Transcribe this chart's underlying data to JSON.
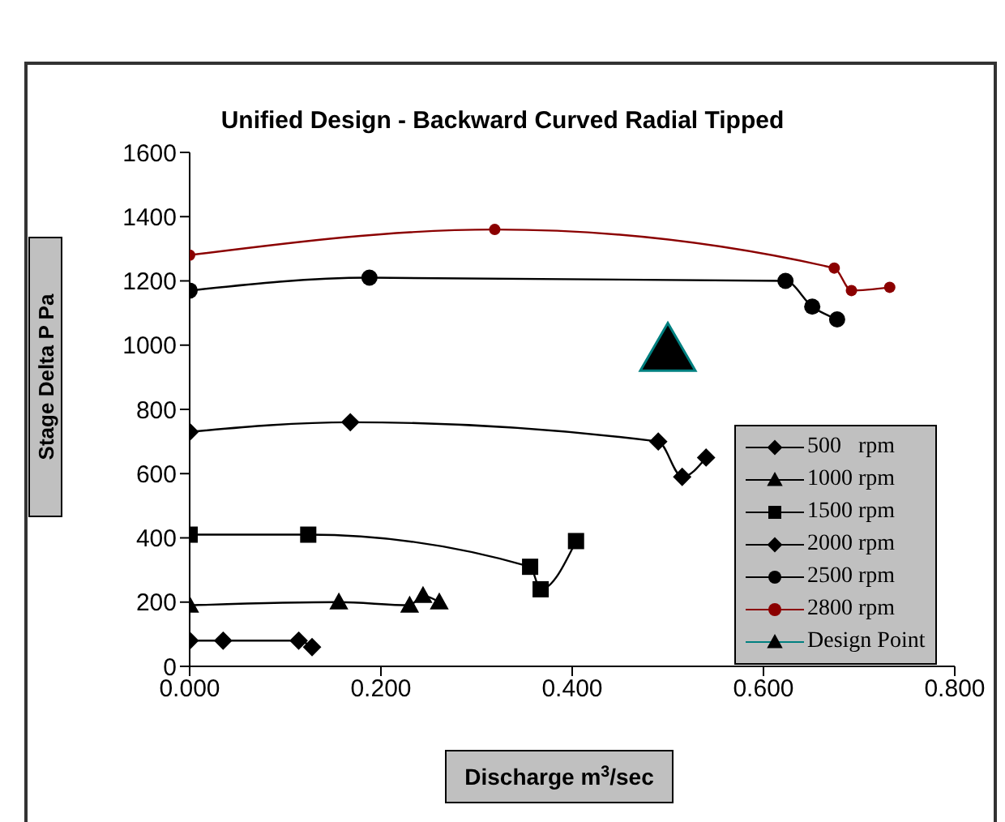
{
  "chart_data": {
    "type": "line",
    "title": "Unified Design - Backward Curved Radial Tipped",
    "xlabel": "Discharge m$^{3}$/sec",
    "ylabel": "Stage Delta P  Pa",
    "xlim": [
      0,
      0.8
    ],
    "xticks": [
      {
        "value": 0,
        "label": "0.000"
      },
      {
        "value": 0.2,
        "label": "0.200"
      },
      {
        "value": 0.4,
        "label": "0.400"
      },
      {
        "value": 0.6,
        "label": "0.600"
      },
      {
        "value": 0.8,
        "label": "0.800"
      }
    ],
    "ylim": [
      0,
      1600
    ],
    "yticks": [
      0,
      200,
      400,
      600,
      800,
      1000,
      1200,
      1400,
      1600
    ],
    "grid": false,
    "legend": "bottom right",
    "series": [
      {
        "name": "500   rpm",
        "color": "#000000",
        "marker": "diamond",
        "x": [
          0,
          0.035,
          0.114,
          0.128
        ],
        "values": [
          80,
          80,
          80,
          60
        ]
      },
      {
        "name": "1000 rpm",
        "color": "#000000",
        "marker": "triangle",
        "x": [
          0,
          0.156,
          0.23,
          0.244,
          0.261
        ],
        "values": [
          190,
          200,
          190,
          220,
          200
        ]
      },
      {
        "name": "1500 rpm",
        "color": "#000000",
        "marker": "square",
        "x": [
          0,
          0.124,
          0.356,
          0.367,
          0.404
        ],
        "values": [
          410,
          410,
          310,
          240,
          390
        ]
      },
      {
        "name": "2000 rpm",
        "color": "#000000",
        "marker": "diamond",
        "x": [
          0,
          0.168,
          0.49,
          0.515,
          0.54
        ],
        "values": [
          730,
          760,
          700,
          590,
          650
        ]
      },
      {
        "name": "2500 rpm",
        "color": "#000000",
        "marker": "circle",
        "x": [
          0,
          0.188,
          0.623,
          0.651,
          0.677
        ],
        "values": [
          1170,
          1210,
          1200,
          1120,
          1080
        ]
      },
      {
        "name": "2800 rpm",
        "color": "#8b0000",
        "marker": "circle",
        "x": [
          0,
          0.319,
          0.674,
          0.692,
          0.732
        ],
        "values": [
          1280,
          1360,
          1240,
          1170,
          1180
        ]
      },
      {
        "name": "Design Point",
        "type": "scatter",
        "color": "#008080",
        "marker": "triangle",
        "x": [
          0.5
        ],
        "values": [
          970
        ]
      }
    ]
  }
}
